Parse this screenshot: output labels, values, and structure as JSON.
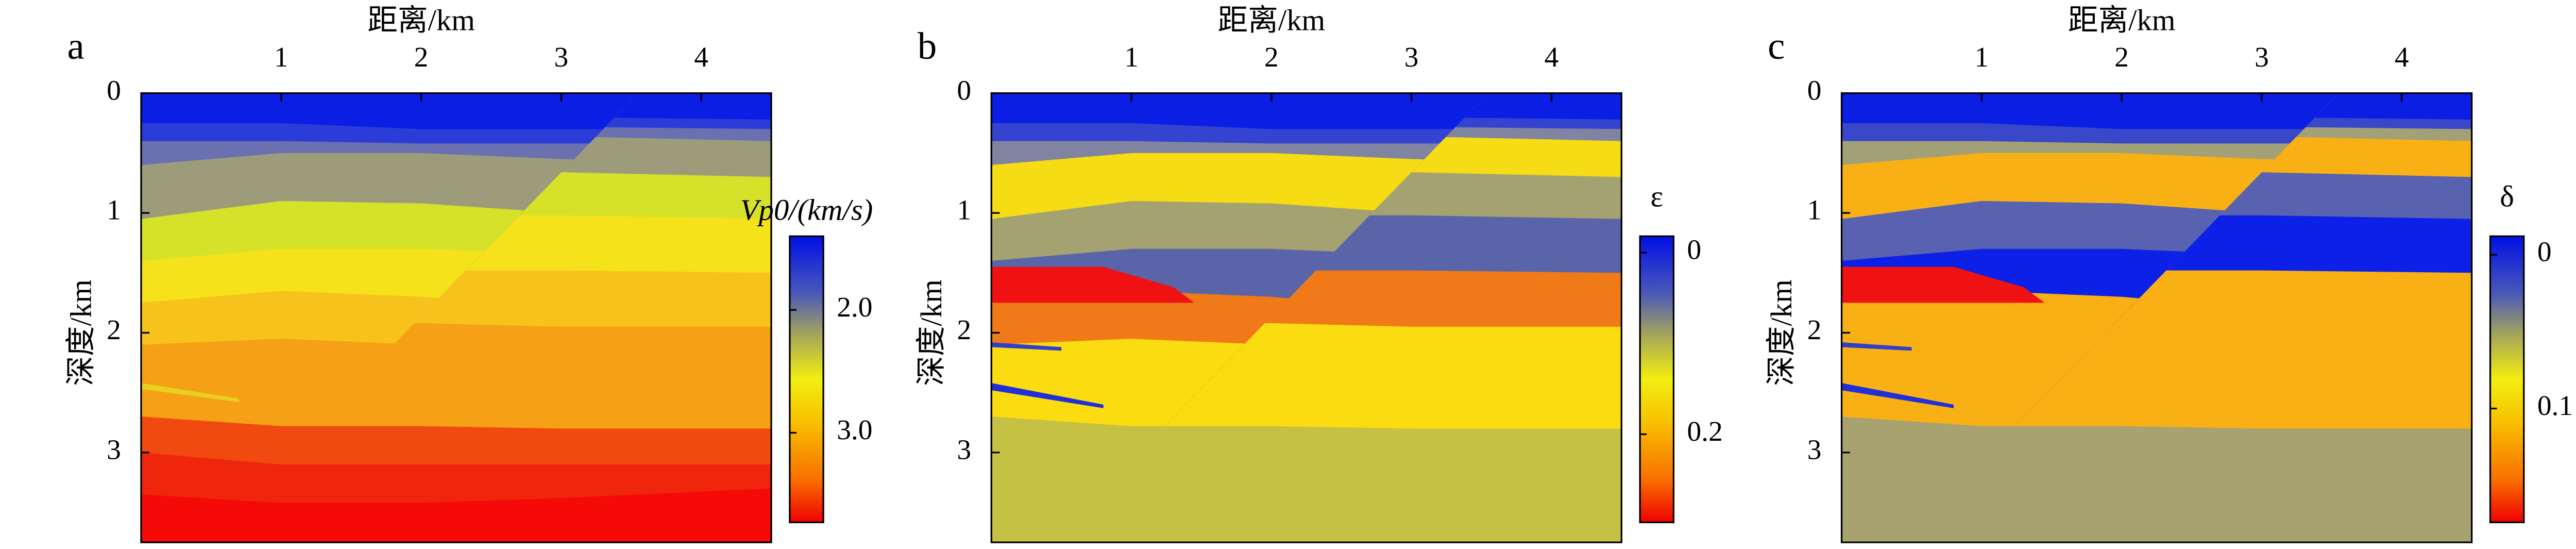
{
  "chart_data": [
    {
      "type": "heatmap",
      "panel": "a",
      "xlabel": "距离/km",
      "ylabel": "深度/km",
      "xlim": [
        0,
        4.5
      ],
      "ylim": [
        0,
        3.75
      ],
      "xticks": [
        1,
        2,
        3,
        4
      ],
      "yticks": [
        0,
        1,
        2,
        3
      ],
      "colorbar": {
        "label": "Vp0/(km/s)",
        "lim": [
          1.4,
          3.73
        ],
        "ticks": [
          {
            "value": 2,
            "label": "2.0"
          },
          {
            "value": 3,
            "label": "3.0"
          }
        ]
      }
    },
    {
      "type": "heatmap",
      "panel": "b",
      "xlabel": "距离/km",
      "ylabel": "深度/km",
      "xlim": [
        0,
        4.5
      ],
      "ylim": [
        0,
        3.75
      ],
      "xticks": [
        1,
        2,
        3,
        4
      ],
      "yticks": [
        0,
        1,
        2,
        3
      ],
      "colorbar": {
        "label": "ε",
        "lim": [
          -0.018,
          0.297
        ],
        "ticks": [
          0,
          0.2
        ]
      }
    },
    {
      "type": "heatmap",
      "panel": "c",
      "xlabel": "距离/km",
      "ylabel": "深度/km",
      "xlim": [
        0,
        4.5
      ],
      "ylim": [
        0,
        3.75
      ],
      "xticks": [
        1,
        2,
        3,
        4
      ],
      "yticks": [
        0,
        1,
        2,
        3
      ],
      "colorbar": {
        "label": "δ",
        "lim": [
          -0.012,
          0.174
        ],
        "ticks": [
          0,
          0.1
        ]
      }
    }
  ]
}
